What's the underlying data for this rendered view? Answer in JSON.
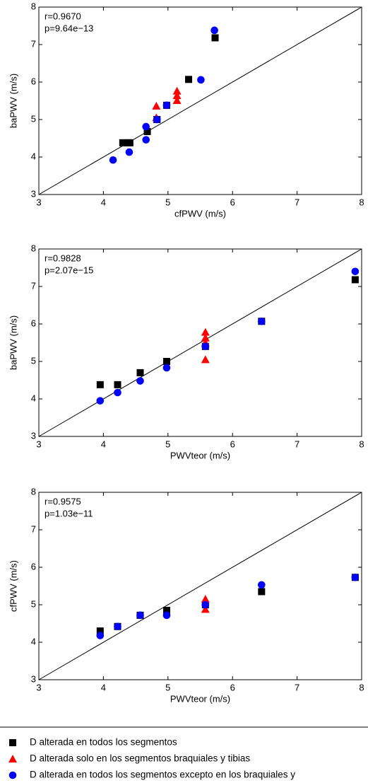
{
  "chart_data": [
    {
      "type": "scatter",
      "xlabel": "cfPWV (m/s)",
      "ylabel": "baPWV (m/s)",
      "annotations": [
        "r=0.9670",
        "p=9.64e−13"
      ],
      "xlim": [
        3,
        8
      ],
      "ylim": [
        3,
        8
      ],
      "xticks": [
        3,
        4,
        5,
        6,
        7,
        8
      ],
      "yticks": [
        3,
        4,
        5,
        6,
        7,
        8
      ],
      "identity_line": true,
      "series": [
        {
          "color": "#000000",
          "marker": "square",
          "x": [
            4.3,
            4.38,
            4.41,
            4.68,
            4.83,
            4.98,
            5.32,
            5.73
          ],
          "values": [
            4.38,
            4.38,
            4.38,
            4.68,
            5.0,
            5.38,
            6.07,
            7.18
          ]
        },
        {
          "color": "#ff0000",
          "marker": "triangle",
          "x": [
            4.82,
            4.82,
            5.14,
            5.14,
            5.14
          ],
          "values": [
            5.36,
            5.05,
            5.76,
            5.64,
            5.51
          ]
        },
        {
          "color": "#0000ff",
          "marker": "circle",
          "x": [
            4.15,
            4.4,
            4.66,
            4.66,
            4.83,
            4.98,
            5.51,
            5.72
          ],
          "values": [
            3.92,
            4.13,
            4.46,
            4.81,
            5.0,
            5.38,
            6.06,
            7.38
          ]
        }
      ]
    },
    {
      "type": "scatter",
      "xlabel": "PWVteor (m/s)",
      "ylabel": "baPWV (m/s)",
      "annotations": [
        "r=0.9828",
        "p=2.07e−15"
      ],
      "xlim": [
        3,
        8
      ],
      "ylim": [
        3,
        8
      ],
      "xticks": [
        3,
        4,
        5,
        6,
        7,
        8
      ],
      "yticks": [
        3,
        4,
        5,
        6,
        7,
        8
      ],
      "identity_line": true,
      "series": [
        {
          "color": "#000000",
          "marker": "square",
          "x": [
            3.95,
            4.22,
            4.57,
            4.98,
            5.58,
            6.45,
            7.9
          ],
          "values": [
            4.38,
            4.38,
            4.7,
            5.0,
            5.4,
            6.07,
            7.18
          ]
        },
        {
          "color": "#ff0000",
          "marker": "triangle",
          "x": [
            5.58,
            5.58,
            5.58,
            5.58
          ],
          "values": [
            5.78,
            5.63,
            5.5,
            5.05
          ]
        },
        {
          "color": "#0000ff",
          "marker": "circle",
          "x": [
            3.95,
            4.22,
            4.57,
            4.98,
            5.58,
            6.45,
            7.9
          ],
          "values": [
            3.95,
            4.17,
            4.48,
            4.83,
            5.4,
            6.07,
            7.4
          ]
        }
      ]
    },
    {
      "type": "scatter",
      "xlabel": "PWVteor (m/s)",
      "ylabel": "cfPWV (m/s)",
      "annotations": [
        "r=0.9575",
        "p=1.03e−11"
      ],
      "xlim": [
        3,
        8
      ],
      "ylim": [
        3,
        8
      ],
      "xticks": [
        3,
        4,
        5,
        6,
        7,
        8
      ],
      "yticks": [
        3,
        4,
        5,
        6,
        7,
        8
      ],
      "identity_line": true,
      "series": [
        {
          "color": "#000000",
          "marker": "square",
          "x": [
            3.95,
            4.22,
            4.57,
            4.98,
            5.58,
            6.45,
            7.9
          ],
          "values": [
            4.3,
            4.42,
            4.72,
            4.85,
            5.0,
            5.35,
            5.73
          ]
        },
        {
          "color": "#ff0000",
          "marker": "triangle",
          "x": [
            5.58,
            5.58
          ],
          "values": [
            5.15,
            4.88
          ]
        },
        {
          "color": "#0000ff",
          "marker": "circle",
          "x": [
            3.95,
            4.22,
            4.57,
            4.98,
            5.58,
            6.45,
            7.9
          ],
          "values": [
            4.18,
            4.42,
            4.72,
            4.72,
            5.0,
            5.53,
            5.73
          ]
        }
      ]
    }
  ],
  "legend": [
    {
      "label": "D alterada en todos los segmentos",
      "color": "#000000",
      "marker": "square"
    },
    {
      "label": "D alterada solo en los segmentos braquiales y tibias",
      "color": "#ff0000",
      "marker": "triangle"
    },
    {
      "label": "D alterada en todos los segmentos excepto en los braquiales y",
      "color": "#0000ff",
      "marker": "circle"
    }
  ]
}
